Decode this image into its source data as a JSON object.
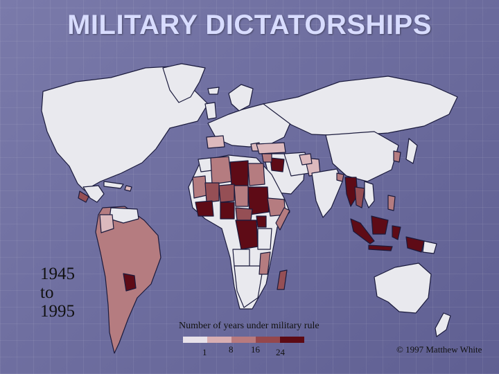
{
  "slide": {
    "title": "MILITARY DICTATORSHIPS"
  },
  "period": {
    "start": "1945",
    "connector": "to",
    "end": "1995"
  },
  "legend": {
    "title": "Number of years under military rule",
    "ticks": [
      "1",
      "8",
      "16",
      "24"
    ],
    "colors": [
      "#e8e2ea",
      "#d8aeb2",
      "#b87a7e",
      "#95474c",
      "#5c0a14"
    ]
  },
  "map": {
    "land_color": "#e9e9ee",
    "border_color": "#1a1a3c",
    "levels": {
      "none": "#e9e9ee",
      "low": "#dcb9bd",
      "medium": "#b57c80",
      "high": "#954f55",
      "very_high": "#5e0b16"
    }
  },
  "copyright": "© 1997 Matthew White"
}
